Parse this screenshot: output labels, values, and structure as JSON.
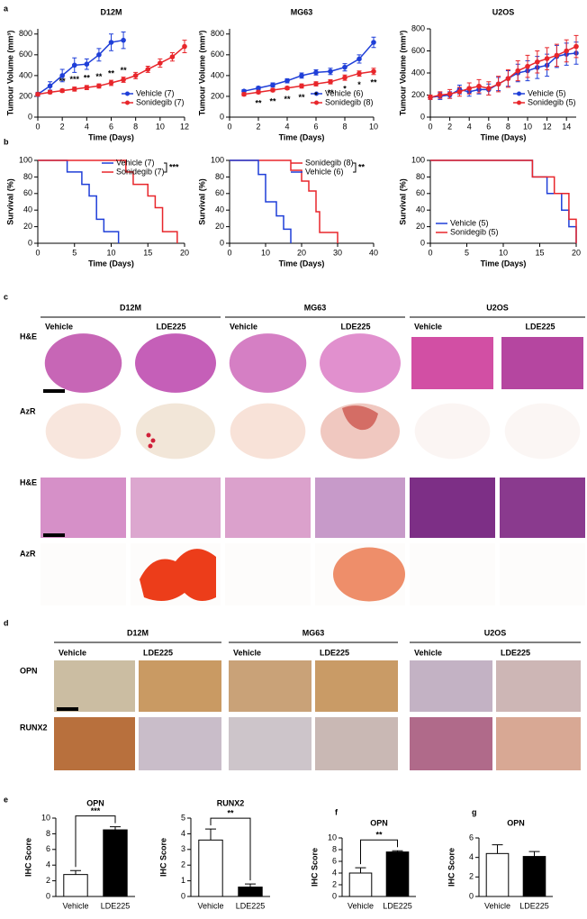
{
  "figure": {
    "panel_labels": [
      "a",
      "b",
      "c",
      "d",
      "e",
      "f",
      "g"
    ],
    "panel_c": {
      "cell_lines": [
        "D12M",
        "MG63",
        "U2OS"
      ],
      "conditions": [
        "Vehicle",
        "LDE225"
      ],
      "stains": [
        "H&E",
        "AzR",
        "H&E",
        "AzR"
      ]
    },
    "panel_d": {
      "cell_lines": [
        "D12M",
        "MG63",
        "U2OS"
      ],
      "conditions": [
        "Vehicle",
        "LDE225"
      ],
      "markers": [
        "OPN",
        "RUNX2"
      ]
    }
  },
  "chart_data": [
    {
      "type": "line",
      "title": "D12M",
      "xlabel": "Time (Days)",
      "ylabel": "Tumour Volume (mm³)",
      "xlim": [
        0,
        12
      ],
      "ylim": [
        0,
        850
      ],
      "xticks": [
        0,
        2,
        4,
        6,
        8,
        10,
        12
      ],
      "yticks": [
        0,
        200,
        400,
        600,
        800
      ],
      "legend": "lower right",
      "series": [
        {
          "name": "Vehicle (7)",
          "color": "#1f3fd8",
          "x": [
            0,
            1,
            2,
            3,
            4,
            5,
            6,
            7
          ],
          "values": [
            220,
            300,
            400,
            500,
            510,
            600,
            720,
            740
          ],
          "errors": [
            20,
            40,
            60,
            70,
            50,
            60,
            80,
            80
          ]
        },
        {
          "name": "Sonidegib (7)",
          "color": "#e8262b",
          "x": [
            0,
            1,
            2,
            3,
            4,
            5,
            6,
            7,
            8,
            9,
            10,
            11,
            12
          ],
          "values": [
            220,
            240,
            255,
            270,
            285,
            300,
            330,
            360,
            400,
            460,
            520,
            580,
            680
          ],
          "errors": [
            15,
            15,
            15,
            20,
            20,
            20,
            25,
            25,
            30,
            30,
            40,
            40,
            60
          ]
        }
      ],
      "annotations": [
        {
          "x": 2,
          "text": "**"
        },
        {
          "x": 3,
          "text": "***"
        },
        {
          "x": 4,
          "text": "**"
        },
        {
          "x": 5,
          "text": "**"
        },
        {
          "x": 6,
          "text": "**"
        },
        {
          "x": 7,
          "text": "**"
        }
      ]
    },
    {
      "type": "line",
      "title": "MG63",
      "xlabel": "Time (Days)",
      "ylabel": "Tumour Volume (mm³)",
      "xlim": [
        0,
        10
      ],
      "ylim": [
        0,
        850
      ],
      "xticks": [
        0,
        2,
        4,
        6,
        8,
        10
      ],
      "yticks": [
        0,
        200,
        400,
        600,
        800
      ],
      "legend": "lower right",
      "series": [
        {
          "name": "Vehicle (6)",
          "color": "#1f3fd8",
          "x": [
            1,
            2,
            3,
            4,
            5,
            6,
            7,
            8,
            9,
            10
          ],
          "values": [
            250,
            280,
            310,
            350,
            400,
            430,
            440,
            480,
            560,
            720
          ],
          "errors": [
            15,
            15,
            20,
            20,
            25,
            25,
            30,
            35,
            40,
            50
          ]
        },
        {
          "name": "Sonidegib (8)",
          "color": "#e8262b",
          "x": [
            1,
            2,
            3,
            4,
            5,
            6,
            7,
            8,
            9,
            10
          ],
          "values": [
            220,
            240,
            260,
            280,
            300,
            320,
            340,
            380,
            420,
            440
          ],
          "errors": [
            15,
            15,
            15,
            15,
            20,
            20,
            20,
            25,
            25,
            30
          ]
        }
      ],
      "annotations": [
        {
          "x": 2,
          "text": "**"
        },
        {
          "x": 3,
          "text": "**"
        },
        {
          "x": 4,
          "text": "**"
        },
        {
          "x": 5,
          "text": "**"
        },
        {
          "x": 6,
          "text": "*"
        },
        {
          "x": 7,
          "text": "**"
        },
        {
          "x": 8,
          "text": "*"
        },
        {
          "x": 9,
          "text": "*"
        },
        {
          "x": 10,
          "text": "**"
        }
      ]
    },
    {
      "type": "line",
      "title": "U2OS",
      "xlabel": "Time (Days)",
      "ylabel": "Tumour Volume (mm³)",
      "xlim": [
        0,
        15
      ],
      "ylim": [
        0,
        800
      ],
      "xticks": [
        0,
        2,
        4,
        6,
        8,
        10,
        12,
        14
      ],
      "yticks": [
        0,
        200,
        400,
        600,
        800
      ],
      "legend": "lower right",
      "series": [
        {
          "name": "Vehicle (5)",
          "color": "#1f3fd8",
          "x": [
            0,
            1,
            2,
            3,
            4,
            5,
            6,
            7,
            8,
            9,
            10,
            11,
            12,
            13,
            14,
            15
          ],
          "values": [
            180,
            190,
            200,
            250,
            230,
            250,
            250,
            300,
            350,
            400,
            420,
            450,
            470,
            550,
            570,
            580
          ],
          "errors": [
            20,
            30,
            30,
            40,
            40,
            40,
            50,
            60,
            70,
            80,
            90,
            100,
            100,
            100,
            100,
            100
          ]
        },
        {
          "name": "Sonidegib (5)",
          "color": "#e8262b",
          "x": [
            0,
            1,
            2,
            3,
            4,
            5,
            6,
            7,
            8,
            9,
            10,
            11,
            12,
            13,
            14,
            15
          ],
          "values": [
            180,
            200,
            210,
            230,
            260,
            280,
            260,
            300,
            350,
            420,
            460,
            500,
            530,
            560,
            600,
            640
          ],
          "errors": [
            20,
            30,
            40,
            40,
            50,
            60,
            60,
            70,
            80,
            90,
            100,
            100,
            100,
            100,
            100,
            100
          ]
        }
      ]
    },
    {
      "type": "step",
      "xlabel": "Time (Days)",
      "ylabel": "Survival (%)",
      "xlim": [
        0,
        20
      ],
      "ylim": [
        0,
        100
      ],
      "xticks": [
        0,
        5,
        10,
        15,
        20
      ],
      "yticks": [
        0,
        20,
        40,
        60,
        80,
        100
      ],
      "legend": "upper right",
      "series": [
        {
          "name": "Vehicle (7)",
          "color": "#1f3fd8",
          "x": [
            0,
            4,
            6,
            7,
            8,
            9,
            11
          ],
          "values": [
            100,
            86,
            71,
            57,
            29,
            14,
            0
          ]
        },
        {
          "name": "Sonidegib (7)",
          "color": "#e8262b",
          "x": [
            0,
            12,
            13,
            15,
            16,
            17,
            19
          ],
          "values": [
            100,
            86,
            71,
            57,
            43,
            14,
            0
          ]
        }
      ],
      "annotations": [
        {
          "text": "***"
        }
      ]
    },
    {
      "type": "step",
      "xlabel": "Time (Days)",
      "ylabel": "Survival (%)",
      "xlim": [
        0,
        40
      ],
      "ylim": [
        0,
        100
      ],
      "xticks": [
        0,
        10,
        20,
        30,
        40
      ],
      "yticks": [
        0,
        20,
        40,
        60,
        80,
        100
      ],
      "legend": "upper right",
      "series": [
        {
          "name": "Sonidegib (8)",
          "color": "#e8262b",
          "x": [
            0,
            17,
            20,
            22,
            24,
            25,
            30
          ],
          "values": [
            100,
            88,
            75,
            63,
            38,
            13,
            0
          ]
        },
        {
          "name": "Vehicle (6)",
          "color": "#1f3fd8",
          "x": [
            0,
            8,
            10,
            13,
            15,
            17
          ],
          "values": [
            100,
            83,
            50,
            33,
            17,
            0
          ]
        }
      ],
      "annotations": [
        {
          "text": "**"
        }
      ]
    },
    {
      "type": "step",
      "xlabel": "Time (Days)",
      "ylabel": "Survival (%)",
      "xlim": [
        0,
        20
      ],
      "ylim": [
        0,
        100
      ],
      "xticks": [
        0,
        5,
        10,
        15,
        20
      ],
      "yticks": [
        0,
        20,
        40,
        60,
        80,
        100
      ],
      "legend": "lower left",
      "series": [
        {
          "name": "Vehicle (5)",
          "color": "#1f3fd8",
          "x": [
            0,
            14,
            16,
            18,
            19,
            20
          ],
          "values": [
            100,
            80,
            60,
            40,
            20,
            0
          ]
        },
        {
          "name": "Sonidegib (5)",
          "color": "#e8262b",
          "x": [
            0,
            14,
            17,
            19,
            20
          ],
          "values": [
            100,
            80,
            60,
            29,
            0
          ]
        }
      ]
    },
    {
      "type": "bar",
      "title": "OPN",
      "ylabel": "IHC Score",
      "categories": [
        "Vehicle",
        "LDE225"
      ],
      "values": [
        2.8,
        8.5
      ],
      "errors": [
        0.5,
        0.4
      ],
      "colors": [
        "#ffffff",
        "#000000"
      ],
      "ylim": [
        0,
        10
      ],
      "yticks": [
        0,
        2,
        4,
        6,
        8,
        10
      ],
      "annotations": [
        {
          "text": "***"
        }
      ]
    },
    {
      "type": "bar",
      "title": "RUNX2",
      "ylabel": "IHC Score",
      "categories": [
        "Vehicle",
        "LDE225"
      ],
      "values": [
        3.6,
        0.6
      ],
      "errors": [
        0.7,
        0.2
      ],
      "colors": [
        "#ffffff",
        "#000000"
      ],
      "ylim": [
        0,
        5
      ],
      "yticks": [
        0,
        1,
        2,
        3,
        4,
        5
      ],
      "annotations": [
        {
          "text": "**"
        }
      ]
    },
    {
      "type": "bar",
      "title": "OPN",
      "ylabel": "IHC Score",
      "categories": [
        "Vehicle",
        "LDE225"
      ],
      "values": [
        4.0,
        7.6
      ],
      "errors": [
        0.9,
        0.2
      ],
      "colors": [
        "#ffffff",
        "#000000"
      ],
      "ylim": [
        0,
        10
      ],
      "yticks": [
        0,
        2,
        4,
        6,
        8,
        10
      ],
      "annotations": [
        {
          "text": "**"
        }
      ]
    },
    {
      "type": "bar",
      "title": "OPN",
      "ylabel": "IHC Score",
      "categories": [
        "Vehicle",
        "LDE225"
      ],
      "values": [
        4.4,
        4.1
      ],
      "errors": [
        0.9,
        0.5
      ],
      "colors": [
        "#ffffff",
        "#000000"
      ],
      "ylim": [
        0,
        6
      ],
      "yticks": [
        0,
        2,
        4,
        6
      ]
    }
  ]
}
